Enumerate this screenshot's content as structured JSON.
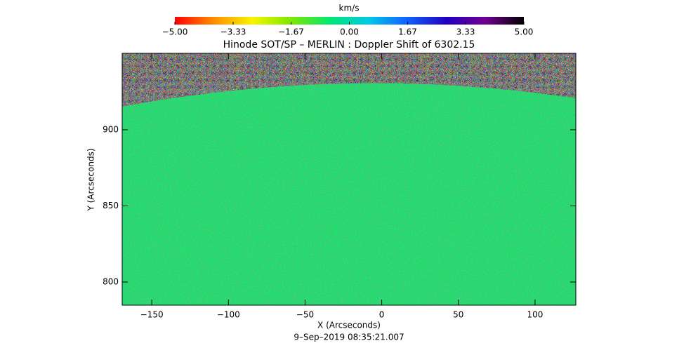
{
  "chart_data": {
    "type": "heatmap",
    "title": "Hinode SOT/SP – MERLIN : Doppler Shift of 6302.15",
    "xlabel": "X (Arcseconds)",
    "ylabel": "Y (Arcseconds)",
    "date": "9–Sep–2019 08:35:21.007",
    "colorbar_label": "km/s",
    "clim": [
      -5,
      5
    ],
    "colorbar_ticks": [
      {
        "value": -5,
        "label": "−5.00"
      },
      {
        "value": -3.33,
        "label": "−3.33"
      },
      {
        "value": -1.67,
        "label": "−1.67"
      },
      {
        "value": 0,
        "label": "0.00"
      },
      {
        "value": 1.67,
        "label": "1.67"
      },
      {
        "value": 3.33,
        "label": "3.33"
      },
      {
        "value": 5,
        "label": "5.00"
      }
    ],
    "colormap": [
      "#ff0000",
      "#ff8c00",
      "#f5f500",
      "#7de800",
      "#00e870",
      "#00c8e8",
      "#1060ff",
      "#2000c0",
      "#700090",
      "#000000"
    ],
    "xlim": [
      -169.3,
      126.6
    ],
    "ylim": [
      784.8,
      950.2
    ],
    "xticks": [
      {
        "value": -150,
        "label": "−150"
      },
      {
        "value": -100,
        "label": "−100"
      },
      {
        "value": -50,
        "label": "−50"
      },
      0,
      50,
      100
    ],
    "yticks": [
      800,
      850,
      900
    ]
  }
}
